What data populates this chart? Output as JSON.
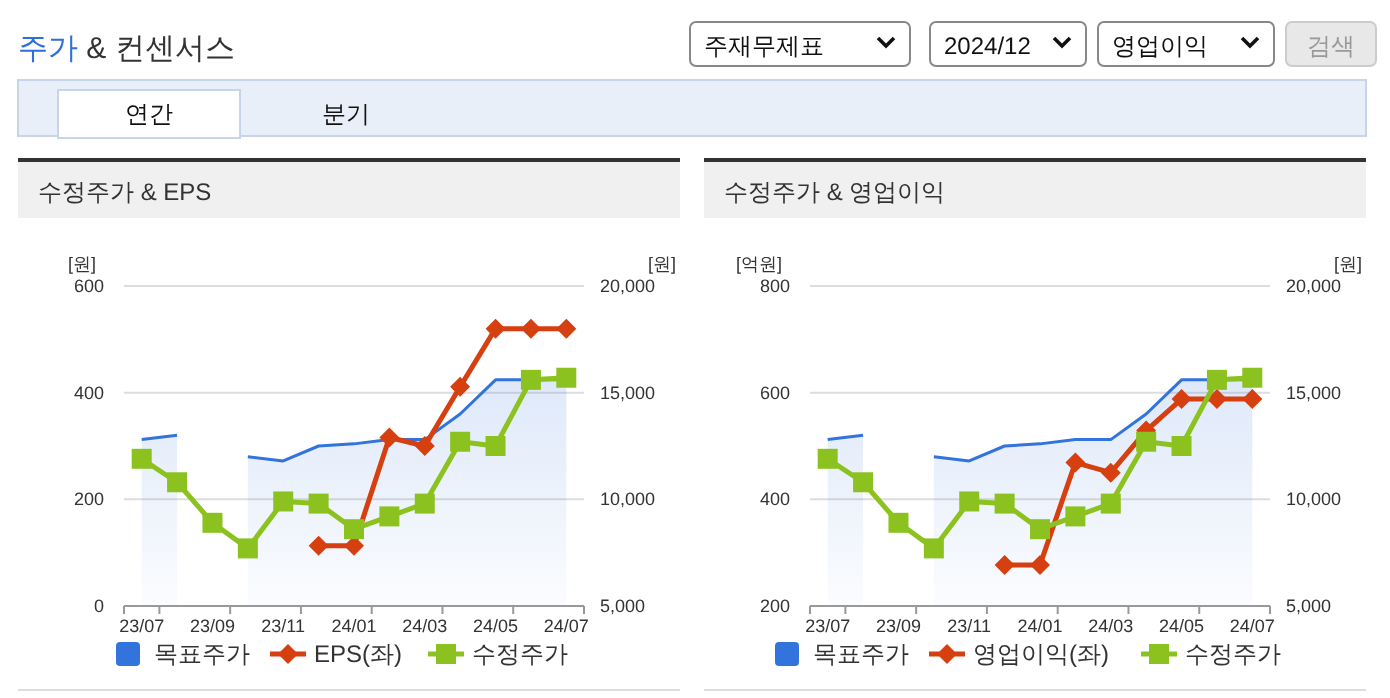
{
  "chart_data": [
    {
      "type": "other",
      "title": "주가 & 컨센서스",
      "annotations": [
        "주재무제표",
        "2024/12",
        "영업이익",
        "검색",
        "연간",
        "분기"
      ]
    },
    {
      "type": "line",
      "title": "수정주가 & EPS",
      "ylabel": "[원]",
      "y2label": "[원]",
      "categories": [
        "23/07",
        null,
        "23/09",
        null,
        "23/11",
        null,
        "24/01",
        null,
        "24/03",
        null,
        "24/05",
        null,
        "24/07"
      ],
      "ylim": [
        0,
        600
      ],
      "yticks": [
        0,
        200,
        400,
        600
      ],
      "y2lim": [
        5000,
        20000
      ],
      "y2ticks": [
        {
          "value": 5000,
          "label": "5,000"
        },
        {
          "value": 10000,
          "label": "10,000"
        },
        {
          "value": 15000,
          "label": "15,000"
        },
        {
          "value": 20000,
          "label": "20,000"
        }
      ],
      "grid": "y",
      "legend": "bottom",
      "series": [
        {
          "name": "목표주가",
          "type": "area",
          "axis": "y2",
          "color": "#3273dc",
          "values": [
            12800,
            13000,
            null,
            12000,
            11800,
            12500,
            12600,
            12800,
            12800,
            14000,
            15600,
            15600,
            15600
          ]
        },
        {
          "name": "EPS(좌)",
          "type": "line",
          "marker": "diamond",
          "color": "#d63f10",
          "values": [
            null,
            null,
            null,
            null,
            null,
            113,
            113,
            316,
            300,
            411,
            520,
            520,
            520
          ]
        },
        {
          "name": "수정주가",
          "type": "line",
          "axis": "y2",
          "marker": "square",
          "color": "#8cc21f",
          "values": [
            11900,
            10800,
            8900,
            7700,
            9900,
            9800,
            8600,
            9200,
            9800,
            12700,
            12500,
            15600,
            15700
          ]
        }
      ]
    },
    {
      "type": "line",
      "title": "수정주가 & 영업이익",
      "ylabel": "[억원]",
      "y2label": "[원]",
      "categories": [
        "23/07",
        null,
        "23/09",
        null,
        "23/11",
        null,
        "24/01",
        null,
        "24/03",
        null,
        "24/05",
        null,
        "24/07"
      ],
      "ylim": [
        200,
        800
      ],
      "yticks": [
        200,
        400,
        600,
        800
      ],
      "y2lim": [
        5000,
        20000
      ],
      "y2ticks": [
        {
          "value": 5000,
          "label": "5,000"
        },
        {
          "value": 10000,
          "label": "10,000"
        },
        {
          "value": 15000,
          "label": "15,000"
        },
        {
          "value": 20000,
          "label": "20,000"
        }
      ],
      "grid": "y",
      "legend": "bottom",
      "series": [
        {
          "name": "목표주가",
          "type": "area",
          "axis": "y2",
          "color": "#3273dc",
          "values": [
            12800,
            13000,
            null,
            12000,
            11800,
            12500,
            12600,
            12800,
            12800,
            14000,
            15600,
            15600,
            15600
          ]
        },
        {
          "name": "영업이익(좌)",
          "type": "line",
          "marker": "diamond",
          "color": "#d63f10",
          "values": [
            null,
            null,
            null,
            null,
            null,
            277,
            277,
            469,
            450,
            529,
            588,
            588,
            588
          ]
        },
        {
          "name": "수정주가",
          "type": "line",
          "axis": "y2",
          "marker": "square",
          "color": "#8cc21f",
          "values": [
            11900,
            10800,
            8900,
            7700,
            9900,
            9800,
            8600,
            9200,
            9800,
            12700,
            12500,
            15600,
            15700
          ]
        }
      ]
    }
  ]
}
